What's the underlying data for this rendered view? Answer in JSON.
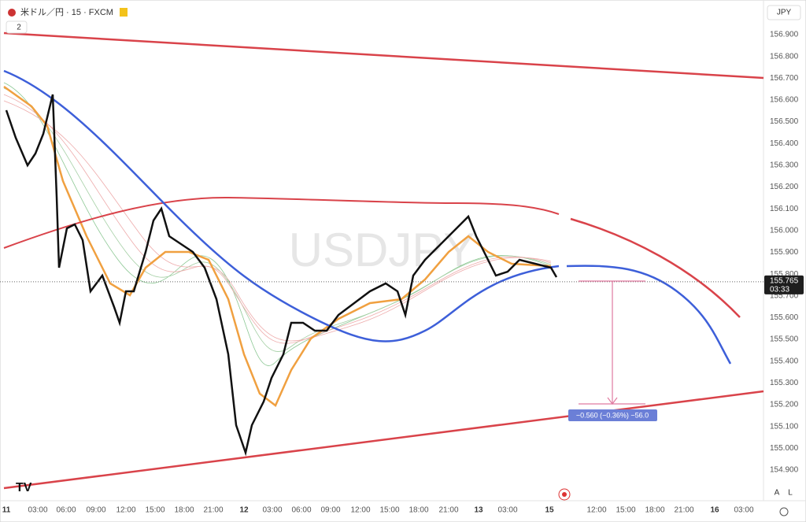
{
  "header": {
    "symbol": "米ドル／円 · 15 · FXCM",
    "badge": "2",
    "currency": "JPY"
  },
  "watermark": "USDJPY",
  "price_axis": {
    "ticks": [
      {
        "value": 156.9,
        "label": "156.900"
      },
      {
        "value": 156.8,
        "label": "156.800"
      },
      {
        "value": 156.7,
        "label": "156.700"
      },
      {
        "value": 156.6,
        "label": "156.600"
      },
      {
        "value": 156.5,
        "label": "156.500"
      },
      {
        "value": 156.4,
        "label": "156.400"
      },
      {
        "value": 156.3,
        "label": "156.300"
      },
      {
        "value": 156.2,
        "label": "156.200"
      },
      {
        "value": 156.1,
        "label": "156.100"
      },
      {
        "value": 156.0,
        "label": "156.000"
      },
      {
        "value": 155.9,
        "label": "155.900"
      },
      {
        "value": 155.8,
        "label": "155.800"
      },
      {
        "value": 155.7,
        "label": "155.700"
      },
      {
        "value": 155.6,
        "label": "155.600"
      },
      {
        "value": 155.5,
        "label": "155.500"
      },
      {
        "value": 155.4,
        "label": "155.400"
      },
      {
        "value": 155.3,
        "label": "155.300"
      },
      {
        "value": 155.2,
        "label": "155.200"
      },
      {
        "value": 155.1,
        "label": "155.100"
      },
      {
        "value": 155.0,
        "label": "155.000"
      },
      {
        "value": 154.9,
        "label": "154.900"
      }
    ],
    "last_price": {
      "value": 155.765,
      "label": "155.765"
    },
    "countdown": "03:33"
  },
  "time_axis": [
    "11",
    "03:00",
    "06:00",
    "09:00",
    "12:00",
    "15:00",
    "18:00",
    "21:00",
    "12",
    "03:00",
    "06:00",
    "09:00",
    "12:00",
    "15:00",
    "18:00",
    "21:00",
    "13",
    "03:00",
    "15",
    "12:00",
    "15:00",
    "18:00",
    "21:00",
    "16",
    "03:00"
  ],
  "measure_label": "−0.560 (−0.36%) −56.0",
  "footer": {
    "auto": "A",
    "log": "L"
  }
}
